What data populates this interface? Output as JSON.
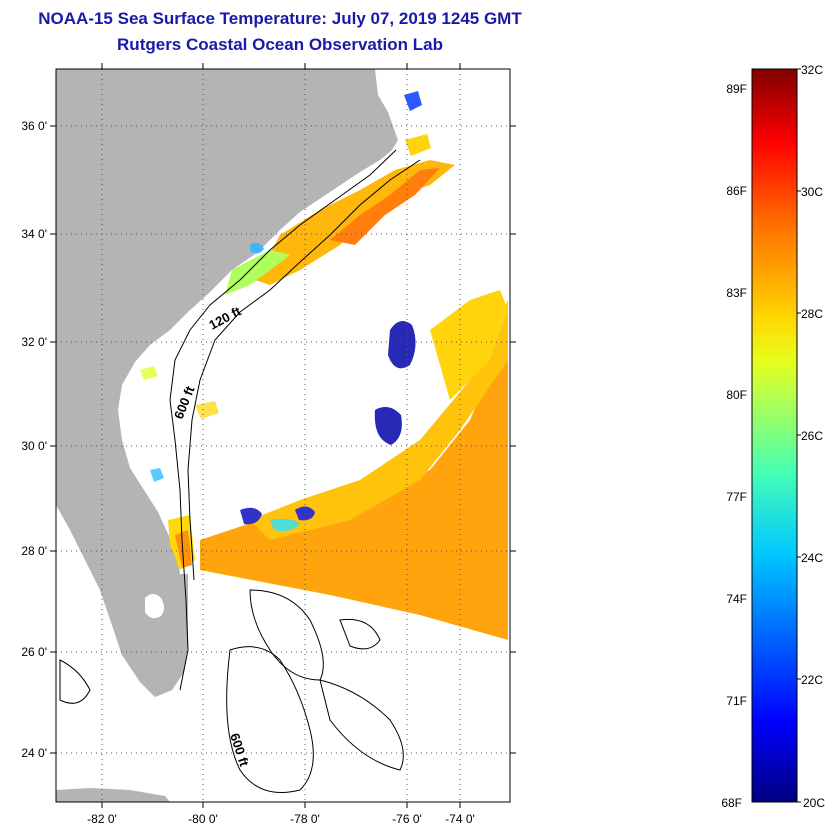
{
  "title": "NOAA-15 Sea Surface Temperature:  July 07, 2019 1245 GMT",
  "subtitle": "Rutgers Coastal Ocean Observation Lab",
  "map": {
    "lat_labels": [
      "36 0'",
      "34 0'",
      "32 0'",
      "30 0'",
      "28 0'",
      "26 0'",
      "24 0'"
    ],
    "lon_labels": [
      "-82 0'",
      "-80 0'",
      "-78 0'",
      "-76 0'",
      "-74 0'"
    ],
    "contour_labels": [
      "120 ft",
      "600 ft",
      "600 ft"
    ],
    "colors": {
      "land": "#b4b4b4",
      "ocean_nodata": "#ffffff"
    }
  },
  "colorbar": {
    "fahrenheit_labels": [
      "89F",
      "86F",
      "83F",
      "80F",
      "77F",
      "74F",
      "71F",
      "68F"
    ],
    "celsius_labels": [
      "32C",
      "30C",
      "28C",
      "26C",
      "24C",
      "22C",
      "20C"
    ],
    "range_c": [
      20,
      32
    ]
  }
}
